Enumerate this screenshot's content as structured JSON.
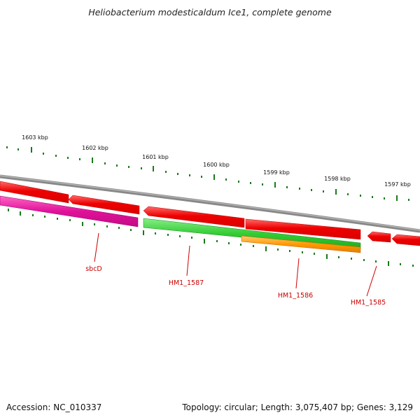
{
  "title": "Heliobacterium modesticaldum Ice1, complete genome",
  "kbp_labels": [
    "1603 kbp",
    "1602 kbp",
    "1601 kbp",
    "1600 kbp",
    "1599 kbp",
    "1598 kbp",
    "1597 kbp"
  ],
  "gene_labels": [
    "sbcD",
    "HM1_1587",
    "HM1_1586",
    "HM1_1585"
  ],
  "footer": {
    "accession": "Accession: NC_010337",
    "topology": "Topology: circular; Length: 3,075,407 bp; Genes: 3,129"
  },
  "colors": {
    "backbone": "#888888",
    "forward_strand_cds": "#ee0000",
    "reverse_magenta": "#e0119a",
    "reverse_green": "#33cc33",
    "reverse_orange": "#ff9900",
    "ticks": "#1a7a1a",
    "label_red": "#cc0000"
  }
}
